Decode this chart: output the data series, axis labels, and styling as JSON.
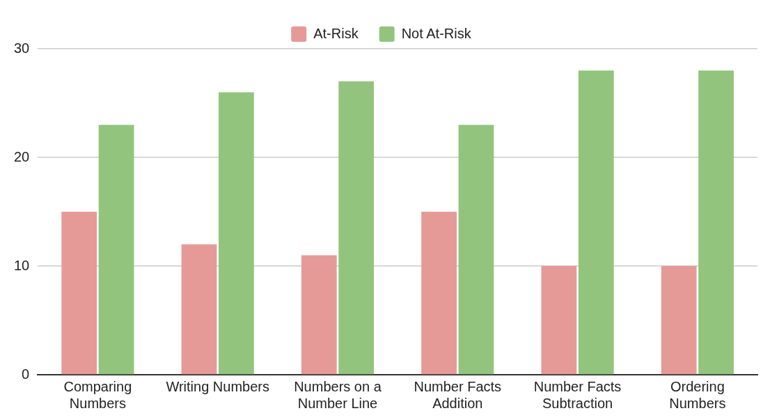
{
  "chart_data": {
    "type": "bar",
    "categories": [
      "Comparing Numbers",
      "Writing Numbers",
      "Numbers on a Number Line",
      "Number Facts Addition",
      "Number Facts Subtraction",
      "Ordering Numbers"
    ],
    "series": [
      {
        "name": "At-Risk",
        "color": "#e69a98",
        "values": [
          15,
          12,
          11,
          15,
          10,
          10
        ]
      },
      {
        "name": "Not At-Risk",
        "color": "#93c47d",
        "values": [
          23,
          26,
          27,
          23,
          28,
          28
        ]
      }
    ],
    "ylim": [
      0,
      30
    ],
    "yticks": [
      0,
      10,
      20,
      30
    ],
    "grid": "y",
    "legend": "top"
  }
}
